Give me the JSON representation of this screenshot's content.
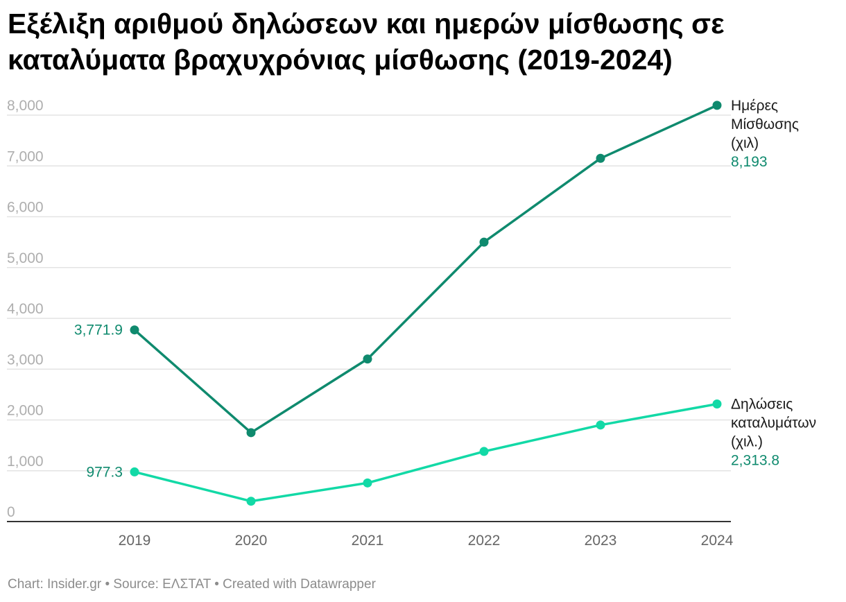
{
  "title": "Εξέλιξη αριθμού δηλώσεων και ημερών μίσθωσης σε καταλύματα βραχυχρόνιας μίσθωσης (2019-2024)",
  "footer": "Chart: Insider.gr • Source: ΕΛΣΤΑΤ • Created with Datawrapper",
  "chart_data": {
    "type": "line",
    "title": "Εξέλιξη αριθμού δηλώσεων και ημερών μίσθωσης σε καταλύματα βραχυχρόνιας μίσθωσης (2019-2024)",
    "x": [
      2019,
      2020,
      2021,
      2022,
      2023,
      2024
    ],
    "x_tick_labels": [
      "2019",
      "2020",
      "2021",
      "2022",
      "2023",
      "2024"
    ],
    "ylim": [
      0,
      8000
    ],
    "y_ticks": [
      0,
      1000,
      2000,
      3000,
      4000,
      5000,
      6000,
      7000,
      8000
    ],
    "y_tick_labels": [
      "0",
      "1,000",
      "2,000",
      "3,000",
      "4,000",
      "5,000",
      "6,000",
      "7,000",
      "8,000"
    ],
    "grid": true,
    "legend": "direct labels at line ends (right)",
    "series": [
      {
        "name_lines": [
          "Ημέρες",
          "Μίσθωσης",
          "(χιλ)"
        ],
        "color": "#0f8a6e",
        "values": [
          3771.9,
          1750,
          3200,
          5500,
          7150,
          8193
        ],
        "start_label": "3,771.9",
        "end_label": "8,193"
      },
      {
        "name_lines": [
          "Δηλώσεις",
          "καταλυμάτων",
          "(χιλ.)"
        ],
        "color": "#12d9a6",
        "values": [
          977.3,
          400,
          760,
          1380,
          1900,
          2313.8
        ],
        "start_label": "977.3",
        "end_label": "2,313.8"
      }
    ],
    "value_label_color": "#0f8a6e"
  }
}
